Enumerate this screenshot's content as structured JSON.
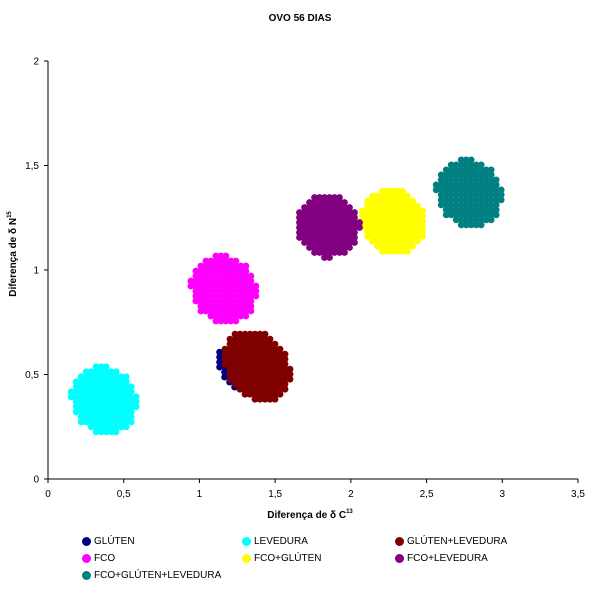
{
  "chart_data": {
    "type": "scatter",
    "title": "OVO 56 DIAS",
    "xlabel_main": "Diferença de δ C",
    "xlabel_sup": "13",
    "ylabel_main": "Diferença de δ N",
    "ylabel_sup": "15",
    "xlim": [
      0,
      3.5
    ],
    "ylim": [
      0,
      2
    ],
    "xticks": [
      "0",
      "0,5",
      "1",
      "1,5",
      "2",
      "2,5",
      "3",
      "3,5"
    ],
    "yticks": [
      "0",
      "0,5",
      "1",
      "1,5",
      "2"
    ],
    "grid": false,
    "legend_position": "bottom",
    "series": [
      {
        "name": "GLÚTEN",
        "color": "#000080",
        "center": [
          1.22,
          0.52
        ],
        "spread": [
          0.08,
          0.13
        ]
      },
      {
        "name": "LEVEDURA",
        "color": "#00FFFF",
        "center": [
          0.37,
          0.38
        ],
        "spread": [
          0.21,
          0.2
        ]
      },
      {
        "name": "GLÚTEN+LEVEDURA",
        "color": "#800000",
        "center": [
          1.38,
          0.54
        ],
        "spread": [
          0.2,
          0.22
        ]
      },
      {
        "name": "FCO",
        "color": "#FF00FF",
        "center": [
          1.16,
          0.91
        ],
        "spread": [
          0.21,
          0.2
        ]
      },
      {
        "name": "FCO+GLÚTEN",
        "color": "#FFFF00",
        "center": [
          2.28,
          1.23
        ],
        "spread": [
          0.21,
          0.19
        ]
      },
      {
        "name": "FCO+LEVEDURA",
        "color": "#800080",
        "center": [
          1.85,
          1.21
        ],
        "spread": [
          0.21,
          0.18
        ]
      },
      {
        "name": "FCO+GLÚTEN+LEVEDURA",
        "color": "#008080",
        "center": [
          2.78,
          1.37
        ],
        "spread": [
          0.21,
          0.2
        ]
      }
    ]
  }
}
